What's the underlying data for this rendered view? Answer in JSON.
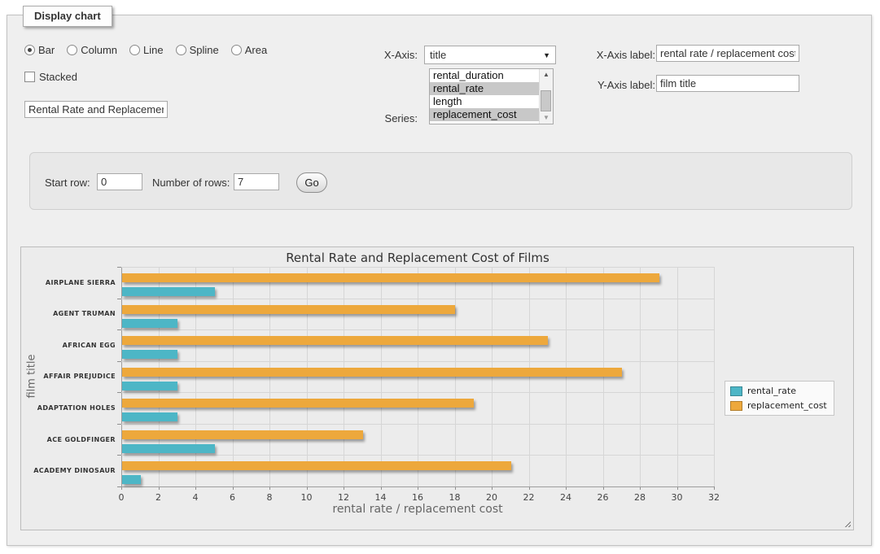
{
  "panel": {
    "title": "Display chart"
  },
  "controls": {
    "chart_types": [
      {
        "label": "Bar",
        "selected": true
      },
      {
        "label": "Column",
        "selected": false
      },
      {
        "label": "Line",
        "selected": false
      },
      {
        "label": "Spline",
        "selected": false
      },
      {
        "label": "Area",
        "selected": false
      }
    ],
    "stacked": {
      "label": "Stacked",
      "checked": false
    },
    "chart_title_input": {
      "value": "Rental Rate and Replacemer"
    },
    "x_axis": {
      "label": "X-Axis:",
      "value": "title"
    },
    "series_select": {
      "label": "Series:",
      "options": [
        {
          "label": "rental_duration",
          "selected": false
        },
        {
          "label": "rental_rate",
          "selected": true
        },
        {
          "label": "length",
          "selected": false
        },
        {
          "label": "replacement_cost",
          "selected": true
        }
      ]
    },
    "x_axis_label": {
      "label": "X-Axis label:",
      "value": "rental rate / replacement cost"
    },
    "y_axis_label": {
      "label": "Y-Axis label:",
      "value": "film title"
    }
  },
  "row_controls": {
    "start_row": {
      "label": "Start row:",
      "value": "0"
    },
    "number_of_rows": {
      "label": "Number of rows:",
      "value": "7"
    },
    "go_button": "Go"
  },
  "chart_data": {
    "type": "bar",
    "orientation": "horizontal",
    "title": "Rental Rate and Replacement Cost of Films",
    "xlabel": "rental rate / replacement cost",
    "ylabel": "film title",
    "categories": [
      "AIRPLANE SIERRA",
      "AGENT TRUMAN",
      "AFRICAN EGG",
      "AFFAIR PREJUDICE",
      "ADAPTATION HOLES",
      "ACE GOLDFINGER",
      "ACADEMY DINOSAUR"
    ],
    "series": [
      {
        "name": "rental_rate",
        "color": "#4DB6C6",
        "values": [
          4.99,
          2.99,
          2.99,
          2.99,
          2.99,
          4.99,
          0.99
        ]
      },
      {
        "name": "replacement_cost",
        "color": "#EDA83C",
        "values": [
          28.99,
          17.99,
          22.99,
          26.99,
          18.99,
          12.99,
          20.99
        ]
      }
    ],
    "xlim": [
      0,
      32
    ],
    "xtick_step": 2,
    "grid": true,
    "legend_position": "right-inside",
    "bar_order_top_to_bottom": [
      "replacement_cost",
      "rental_rate"
    ]
  }
}
